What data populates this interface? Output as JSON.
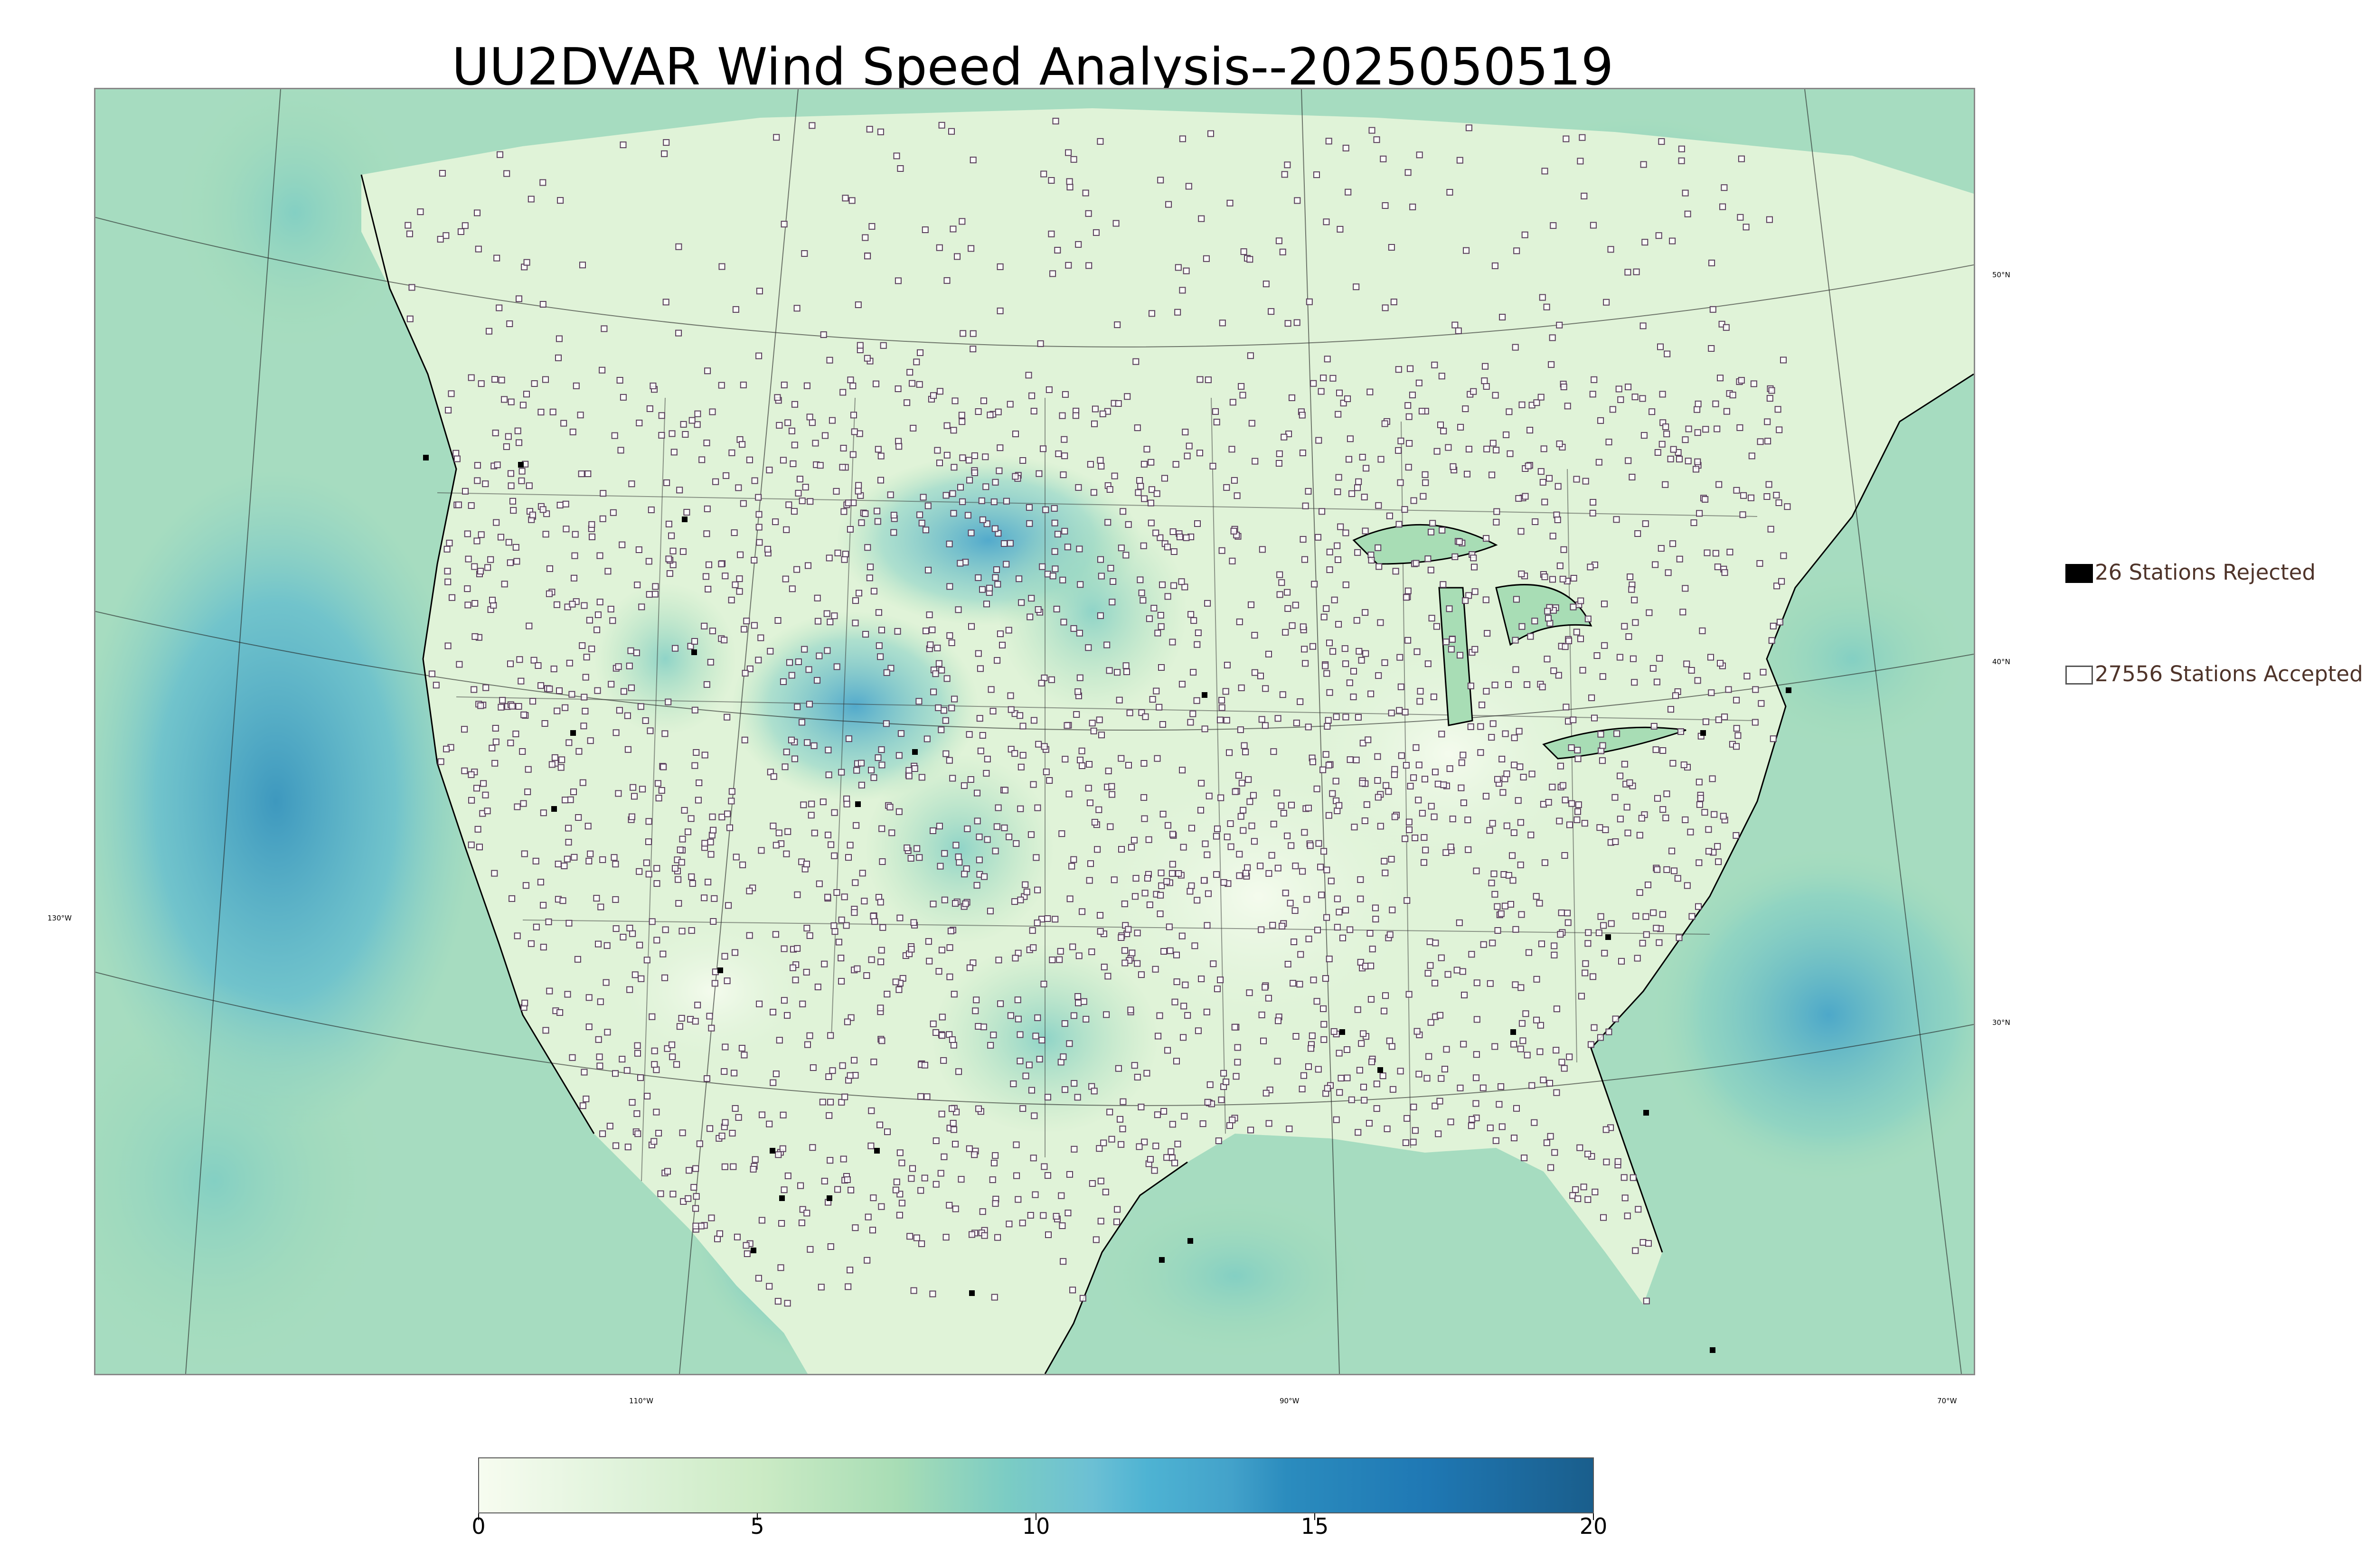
{
  "title": "UU2DVAR Wind Speed Analysis--2025050519",
  "map": {
    "graticule_labels": {
      "lat_50": "50°N",
      "lat_40": "40°N",
      "lat_30": "30°N",
      "lon_130": "130°W",
      "lon_110": "110°W",
      "lon_90": "90°W",
      "lon_70": "70°W"
    },
    "colors": {
      "ocean_base": "#a6dcc0",
      "land_base": "#e0f3d8",
      "station_outline": "#5a3f5c",
      "rejected_fill": "#000000"
    }
  },
  "legend": {
    "rejected_label": "26 Stations Rejected",
    "accepted_label": "27556 Stations Accepted"
  },
  "colorbar": {
    "ticks": [
      "0",
      "5",
      "10",
      "15",
      "20"
    ],
    "min": 0,
    "max": 20,
    "stops": [
      {
        "value": 0,
        "color": "#f7fcf0"
      },
      {
        "value": 2.5,
        "color": "#e0f3db"
      },
      {
        "value": 5,
        "color": "#ccebc5"
      },
      {
        "value": 7.5,
        "color": "#a8ddb5"
      },
      {
        "value": 9.5,
        "color": "#7bccc4"
      },
      {
        "value": 11,
        "color": "#6cc0d4"
      },
      {
        "value": 12,
        "color": "#4eb3d3"
      },
      {
        "value": 13.5,
        "color": "#43a2ca"
      },
      {
        "value": 14.5,
        "color": "#2b8cbe"
      },
      {
        "value": 17,
        "color": "#1f78b4"
      },
      {
        "value": 20,
        "color": "#1a5e8c"
      }
    ]
  }
}
